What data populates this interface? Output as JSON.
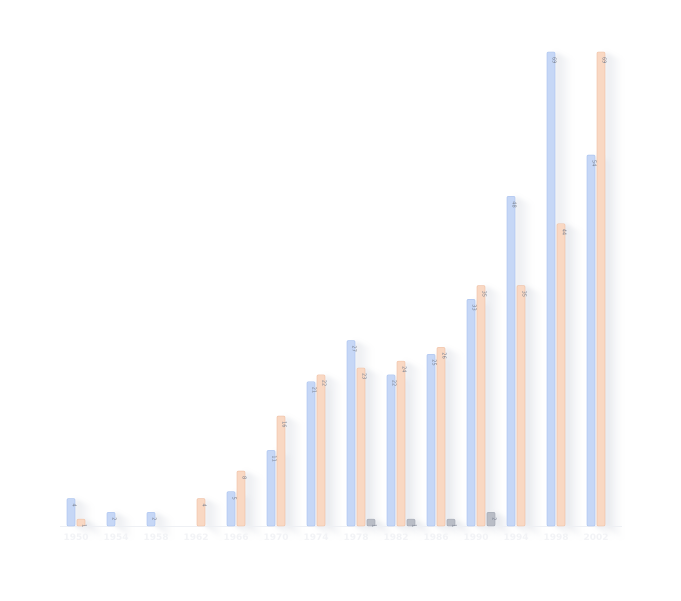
{
  "chart_data": {
    "type": "bar",
    "title": "",
    "xlabel": "",
    "ylabel": "",
    "categories": [
      "1950",
      "1954",
      "1958",
      "1962",
      "1966",
      "1970",
      "1974",
      "1978",
      "1982",
      "1986",
      "1990",
      "1994",
      "1998",
      "2002"
    ],
    "series": [
      {
        "color": "#c6d7f6",
        "edge": "#a9c2ee",
        "values": [
          4,
          2,
          2,
          null,
          5,
          11,
          21,
          27,
          22,
          25,
          33,
          48,
          69,
          54
        ]
      },
      {
        "color": "#f9d8c3",
        "edge": "#efbfa3",
        "values": [
          1,
          null,
          null,
          4,
          8,
          16,
          22,
          23,
          24,
          26,
          35,
          35,
          44,
          69
        ]
      },
      {
        "color": "#b9bdc6",
        "edge": "#a1a6b1",
        "values": [
          null,
          null,
          null,
          null,
          null,
          null,
          null,
          1,
          1,
          1,
          2,
          null,
          null,
          null
        ]
      }
    ],
    "ylim": [
      0,
      69
    ],
    "grid": false,
    "legend": "none"
  }
}
